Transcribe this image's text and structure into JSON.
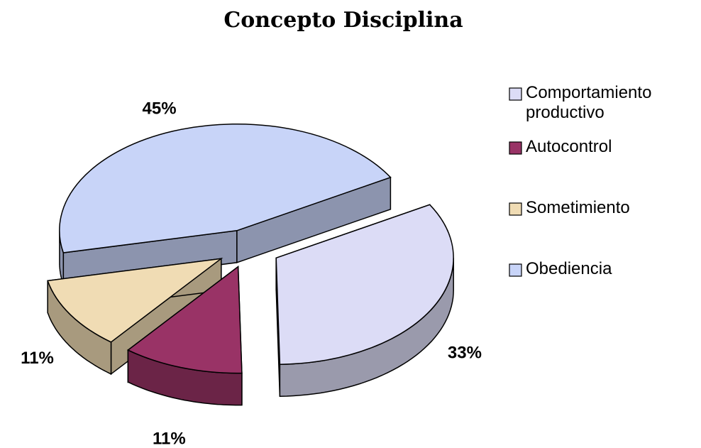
{
  "chart_data": {
    "type": "pie",
    "title": "Concepto Disciplina",
    "categories": [
      "Comportamiento productivo",
      "Autocontrol",
      "Sometimiento",
      "Obediencia"
    ],
    "values": [
      33,
      11,
      11,
      45
    ],
    "value_labels": [
      "33%",
      "11%",
      "11%",
      "45%"
    ],
    "colors": [
      "#dcdcf6",
      "#993366",
      "#f0dcb4",
      "#c8d4f8"
    ],
    "legend": "right"
  }
}
